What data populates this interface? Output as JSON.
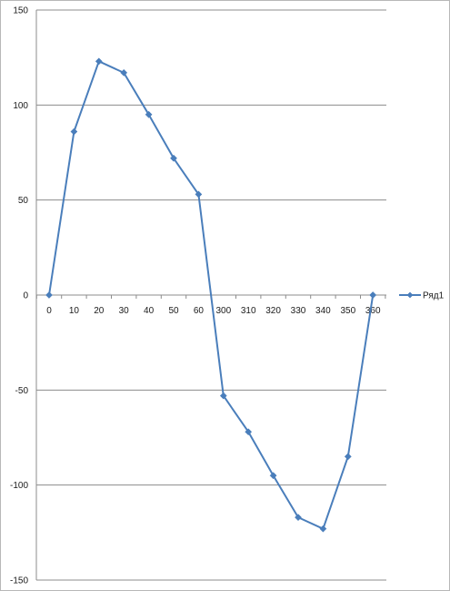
{
  "chart_data": {
    "type": "line",
    "categories": [
      "0",
      "10",
      "20",
      "30",
      "40",
      "50",
      "60",
      "300",
      "310",
      "320",
      "330",
      "340",
      "350",
      "360"
    ],
    "series": [
      {
        "name": "Ряд1",
        "values": [
          0,
          86,
          123,
          117,
          95,
          72,
          53,
          -53,
          -72,
          -95,
          -117,
          -123,
          -85,
          0
        ],
        "color": "#4a7ebb"
      }
    ],
    "yticks": [
      "150",
      "100",
      "50",
      "0",
      "-50",
      "-100",
      "-150"
    ],
    "ylim": [
      -150,
      150
    ],
    "grid": "horizontal",
    "legend": "right",
    "title": "",
    "xlabel": "",
    "ylabel": ""
  }
}
